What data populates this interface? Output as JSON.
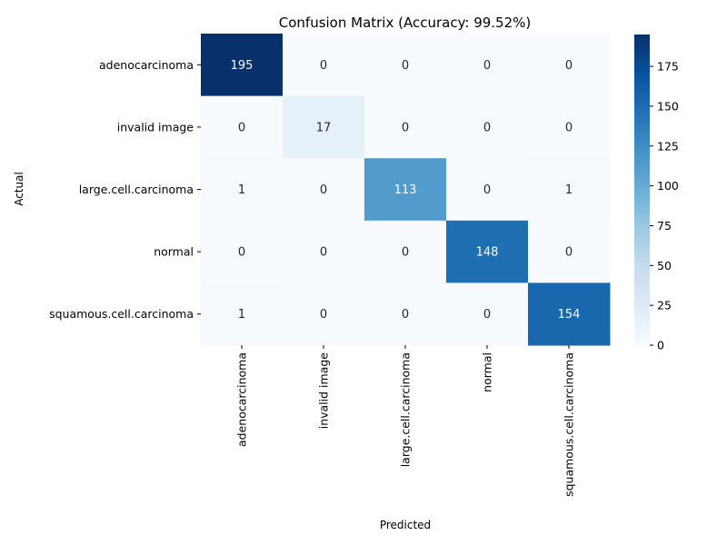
{
  "chart_data": {
    "type": "heatmap",
    "title": "Confusion Matrix (Accuracy: 99.52%)",
    "xlabel": "Predicted",
    "ylabel": "Actual",
    "x_categories": [
      "adenocarcinoma",
      "invalid image",
      "large.cell.carcinoma",
      "normal",
      "squamous.cell.carcinoma"
    ],
    "y_categories": [
      "adenocarcinoma",
      "invalid image",
      "large.cell.carcinoma",
      "normal",
      "squamous.cell.carcinoma"
    ],
    "values": [
      [
        195,
        0,
        0,
        0,
        0
      ],
      [
        0,
        17,
        0,
        0,
        0
      ],
      [
        1,
        0,
        113,
        0,
        1
      ],
      [
        0,
        0,
        0,
        148,
        0
      ],
      [
        1,
        0,
        0,
        0,
        154
      ]
    ],
    "colormap": "Blues",
    "colorbar": {
      "range": [
        0,
        195
      ],
      "ticks": [
        0,
        25,
        50,
        75,
        100,
        125,
        150,
        175
      ]
    },
    "grid": false,
    "legend": "colorbar-right"
  }
}
